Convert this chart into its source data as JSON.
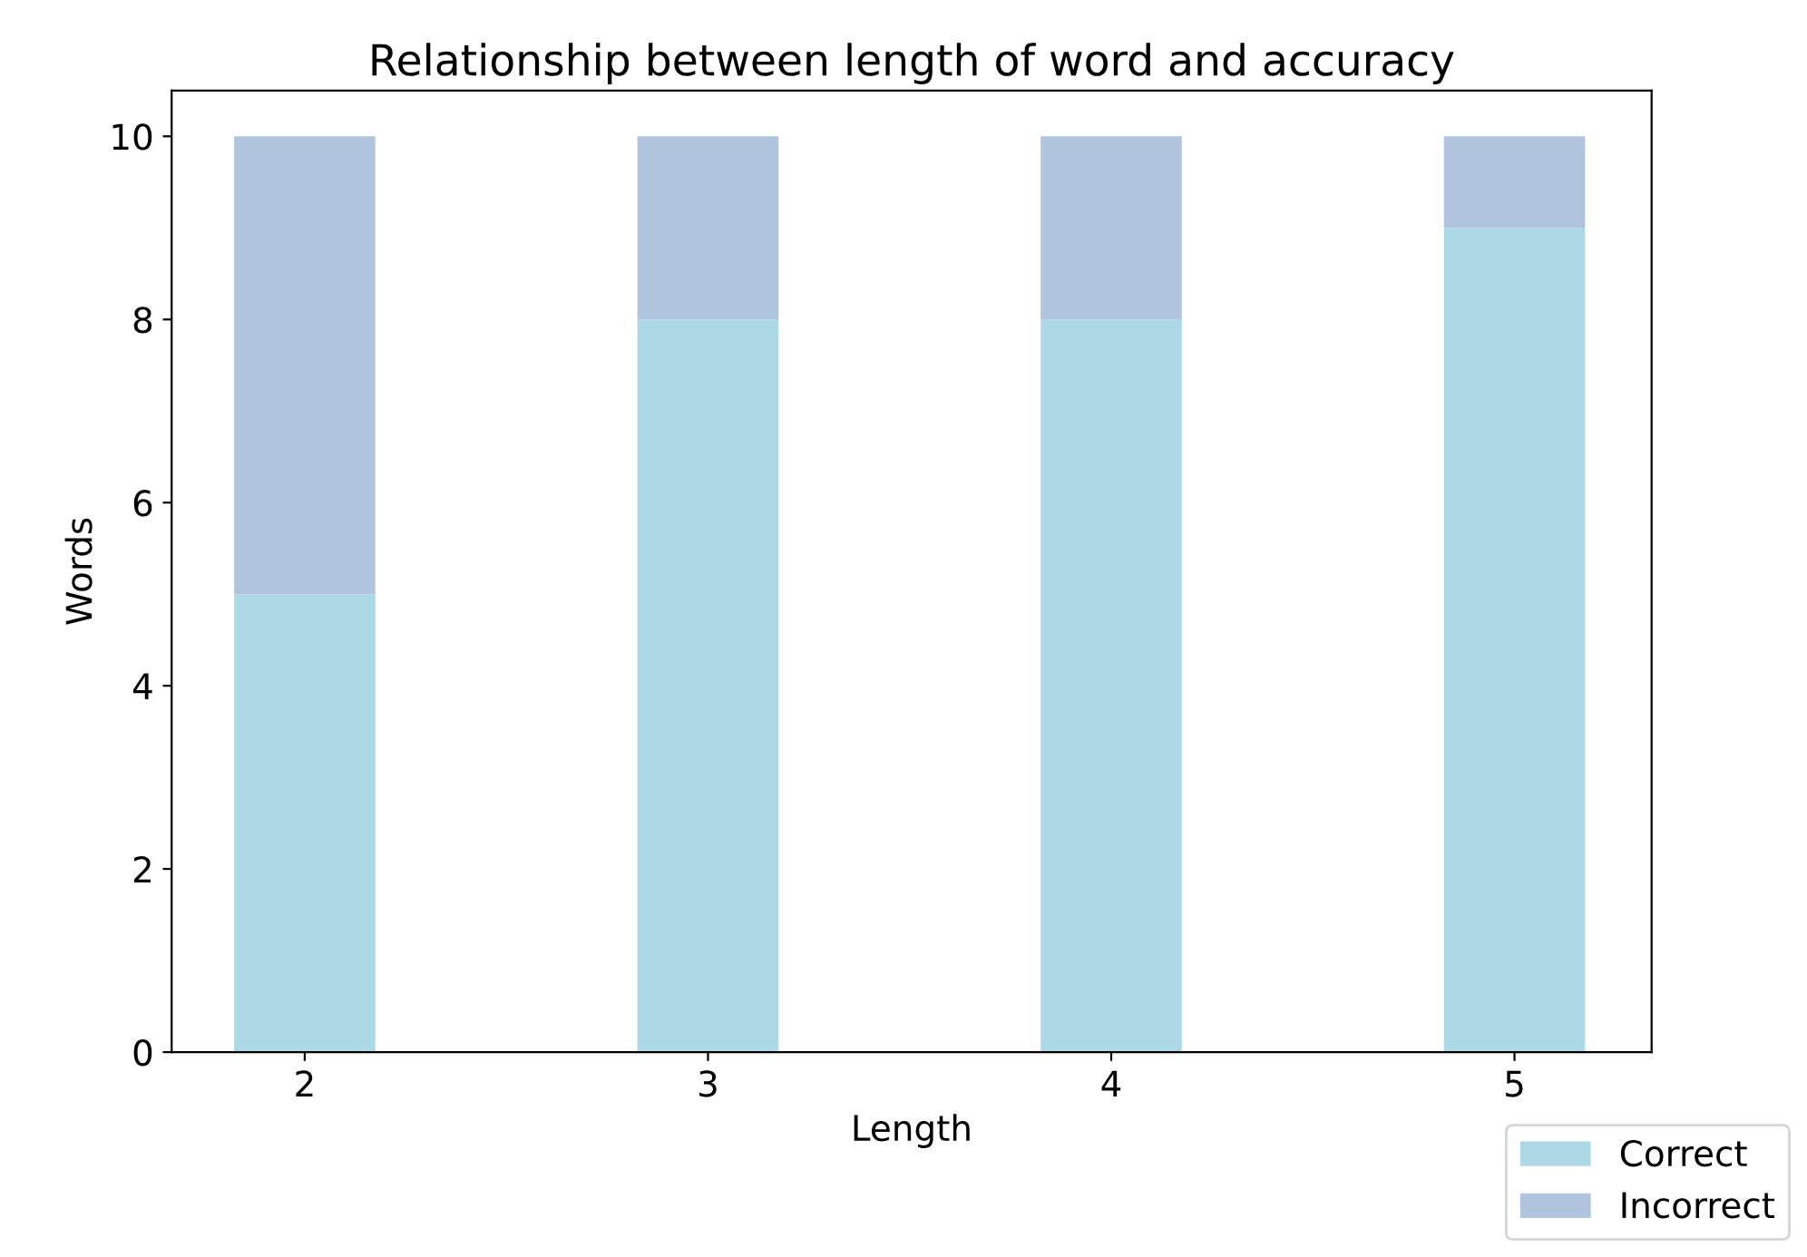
{
  "chart_data": {
    "type": "bar",
    "title": "Relationship between length of word and accuracy",
    "xlabel": "Length",
    "ylabel": "Words",
    "x": [
      2,
      3,
      4,
      5
    ],
    "xlim": [
      1.67,
      5.34
    ],
    "xticks": [
      2,
      3,
      4,
      5
    ],
    "ylim": [
      0,
      10.5
    ],
    "yticks": [
      0,
      2,
      4,
      6,
      8,
      10
    ],
    "stacked": true,
    "grid": false,
    "legend": "bottom right",
    "series": [
      {
        "name": "Correct",
        "color": "#add8e6",
        "values": [
          5,
          8,
          8,
          9
        ]
      },
      {
        "name": "Incorrect",
        "color": "#b0c4de",
        "values": [
          5,
          2,
          2,
          1
        ]
      }
    ]
  }
}
